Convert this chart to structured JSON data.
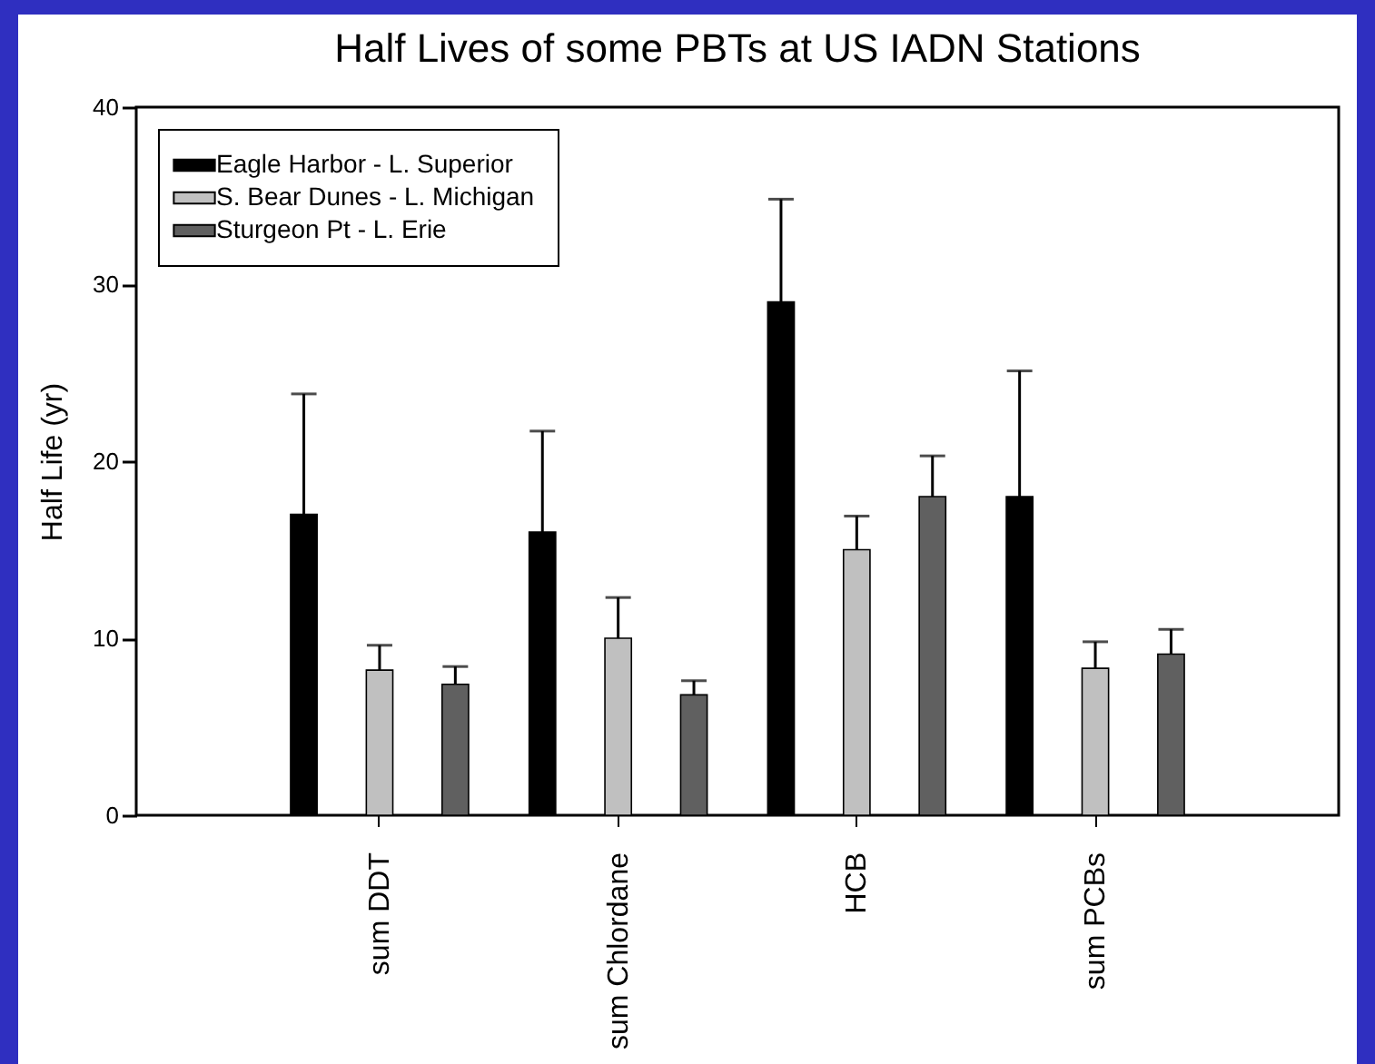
{
  "chart_data": {
    "type": "bar",
    "title": "Half Lives of some PBTs at US IADN Stations",
    "ylabel": "Half Life (yr)",
    "categories": [
      "sum DDT",
      "sum Chlordane",
      "HCB",
      "sum PCBs"
    ],
    "series": [
      {
        "name": "Eagle Harbor - L. Superior",
        "color": "#000000",
        "values": [
          17,
          16,
          29,
          18
        ],
        "errors": [
          [
            17,
            23.8
          ],
          [
            16,
            21.7
          ],
          [
            29,
            34.8
          ],
          [
            18,
            25.1
          ]
        ]
      },
      {
        "name": "S. Bear Dunes - L. Michigan",
        "color": "#c0c0c0",
        "values": [
          8.2,
          10,
          15,
          8.3
        ],
        "errors": [
          [
            8.2,
            9.6
          ],
          [
            10,
            12.3
          ],
          [
            15,
            16.9
          ],
          [
            8.3,
            9.8
          ]
        ]
      },
      {
        "name": "Sturgeon Pt - L. Erie",
        "color": "#606060",
        "values": [
          7.4,
          6.8,
          18,
          9.1
        ],
        "errors": [
          [
            7.4,
            8.4
          ],
          [
            6.8,
            7.6
          ],
          [
            18,
            20.3
          ],
          [
            9.1,
            10.5
          ]
        ]
      }
    ],
    "ylim": [
      0,
      40
    ],
    "yticks": [
      0,
      10,
      20,
      30,
      40
    ],
    "grid": false,
    "legend": "top left"
  }
}
